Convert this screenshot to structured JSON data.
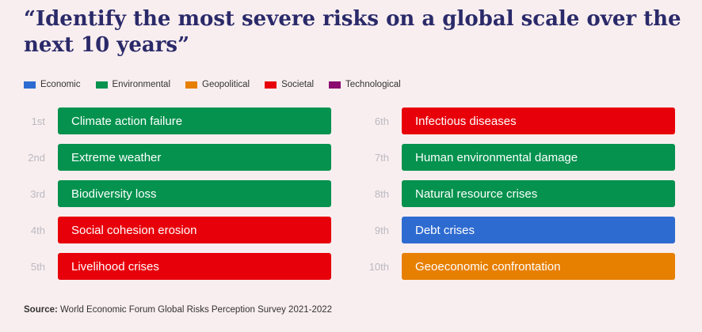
{
  "title": "“Identify the most severe risks on a global scale over the next 10 years”",
  "legend": [
    {
      "label": "Economic",
      "color": "#2e6bd0"
    },
    {
      "label": "Environmental",
      "color": "#04924e"
    },
    {
      "label": "Geopolitical",
      "color": "#e77f00"
    },
    {
      "label": "Societal",
      "color": "#e7000a"
    },
    {
      "label": "Technological",
      "color": "#8a0c70"
    }
  ],
  "risks_left": [
    {
      "rank": "1st",
      "label": "Climate action failure",
      "category": "Environmental",
      "color": "#04924e"
    },
    {
      "rank": "2nd",
      "label": "Extreme weather",
      "category": "Environmental",
      "color": "#04924e"
    },
    {
      "rank": "3rd",
      "label": "Biodiversity loss",
      "category": "Environmental",
      "color": "#04924e"
    },
    {
      "rank": "4th",
      "label": "Social cohesion erosion",
      "category": "Societal",
      "color": "#e7000a"
    },
    {
      "rank": "5th",
      "label": "Livelihood crises",
      "category": "Societal",
      "color": "#e7000a"
    }
  ],
  "risks_right": [
    {
      "rank": "6th",
      "label": "Infectious diseases",
      "category": "Societal",
      "color": "#e7000a"
    },
    {
      "rank": "7th",
      "label": "Human environmental damage",
      "category": "Environmental",
      "color": "#04924e"
    },
    {
      "rank": "8th",
      "label": "Natural resource crises",
      "category": "Environmental",
      "color": "#04924e"
    },
    {
      "rank": "9th",
      "label": "Debt crises",
      "category": "Economic",
      "color": "#2e6bd0"
    },
    {
      "rank": "10th",
      "label": "Geoeconomic confrontation",
      "category": "Geopolitical",
      "color": "#e77f00"
    }
  ],
  "source": {
    "label": "Source:",
    "text": " World Economic Forum Global Risks Perception Survey 2021-2022"
  }
}
